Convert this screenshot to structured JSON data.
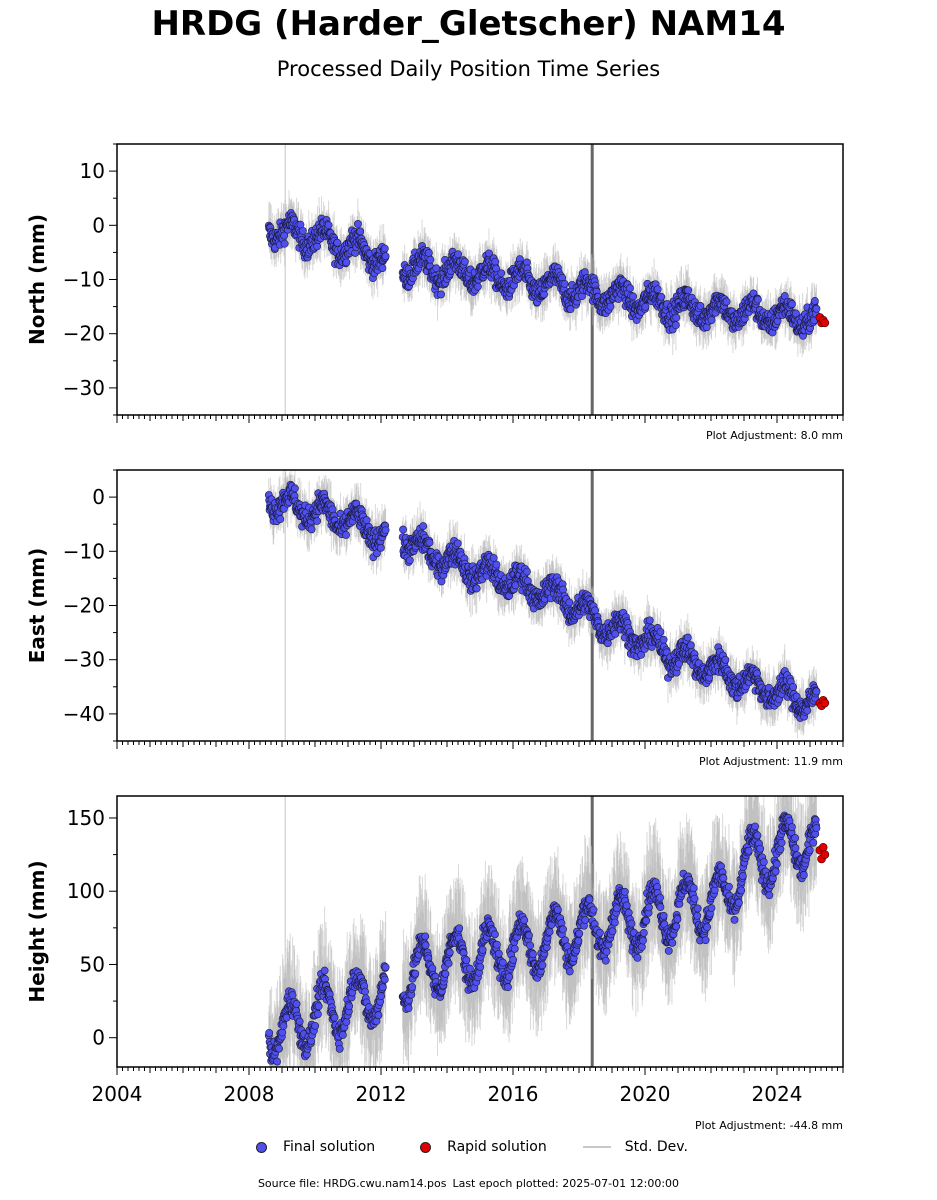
{
  "page": {
    "title": "HRDG (Harder_Gletscher) NAM14",
    "subtitle": "Processed Daily Position Time Series"
  },
  "legend": {
    "final_label": "Final solution",
    "rapid_label": "Rapid solution",
    "stddev_label": "Std. Dev."
  },
  "footer": {
    "source": "Source file: HRDG.cwu.nam14.pos",
    "last_epoch": "Last epoch plotted: 2025-07-01 12:00:00"
  },
  "colors": {
    "final": "#5050f0",
    "rapid": "#e00000",
    "stddev": "#b4b4b4",
    "event_line": "#666666",
    "antenna_line": "#d8d8d8"
  },
  "chart_data": [
    {
      "type": "scatter",
      "ylabel": "North (mm)",
      "adjustment_label": "Plot Adjustment: 8.0 mm",
      "xlim": [
        2004,
        2026
      ],
      "ylim": [
        -35,
        15
      ],
      "yticks": [
        10,
        0,
        -10,
        -20,
        -30
      ],
      "xticks": [],
      "event_lines": [
        2009.1,
        2018.4
      ],
      "final_series": {
        "name": "Final solution",
        "x": [
          2008.6,
          2009.0,
          2009.5,
          2010.0,
          2010.5,
          2011.0,
          2011.5,
          2012.0,
          2012.7,
          2013.0,
          2013.5,
          2014.0,
          2014.5,
          2015.0,
          2015.5,
          2016.0,
          2016.5,
          2017.0,
          2017.5,
          2018.0,
          2018.5,
          2019.0,
          2019.5,
          2020.0,
          2020.5,
          2021.0,
          2021.5,
          2022.0,
          2022.5,
          2023.0,
          2023.5,
          2024.0,
          2024.5,
          2025.0,
          2025.2
        ],
        "y": [
          0,
          -1.5,
          -1.5,
          -2.5,
          -3,
          -4,
          -4.5,
          -6,
          -7.5,
          -8,
          -8,
          -8.5,
          -8.5,
          -9,
          -9.5,
          -10,
          -10.5,
          -11,
          -11.5,
          -12,
          -12.5,
          -13,
          -13.5,
          -14,
          -14.5,
          -15,
          -15.5,
          -15.5,
          -16,
          -16,
          -16.5,
          -16.5,
          -17,
          -17,
          -17.5
        ]
      },
      "rapid_series": {
        "name": "Rapid solution",
        "x": [
          2025.3,
          2025.35,
          2025.4,
          2025.45
        ],
        "y": [
          -17,
          -18,
          -17.5,
          -18
        ]
      }
    },
    {
      "type": "scatter",
      "ylabel": "East (mm)",
      "adjustment_label": "Plot Adjustment: 11.9 mm",
      "xlim": [
        2004,
        2026
      ],
      "ylim": [
        -45,
        5
      ],
      "yticks": [
        0,
        -10,
        -20,
        -30,
        -40
      ],
      "xticks": [],
      "event_lines": [
        2009.1,
        2018.4
      ],
      "final_series": {
        "name": "Final solution",
        "x": [
          2008.6,
          2009.0,
          2009.5,
          2010.0,
          2010.5,
          2011.0,
          2011.5,
          2012.0,
          2012.7,
          2013.0,
          2013.5,
          2014.0,
          2014.5,
          2015.0,
          2015.5,
          2016.0,
          2016.5,
          2017.0,
          2017.5,
          2018.0,
          2018.5,
          2019.0,
          2019.5,
          2020.0,
          2020.5,
          2021.0,
          2021.5,
          2022.0,
          2022.5,
          2023.0,
          2023.5,
          2024.0,
          2024.5,
          2025.0,
          2025.2
        ],
        "y": [
          0,
          -1,
          -2,
          -2.5,
          -3.5,
          -4.5,
          -5.5,
          -7,
          -7,
          -9,
          -10.5,
          -11.5,
          -12.5,
          -14,
          -14.5,
          -15.5,
          -17,
          -17.5,
          -18.5,
          -20.5,
          -22.5,
          -24,
          -25,
          -26.5,
          -28,
          -29.5,
          -30.5,
          -31.5,
          -32.5,
          -34,
          -35,
          -36,
          -37,
          -37.5,
          -38
        ]
      },
      "rapid_series": {
        "name": "Rapid solution",
        "x": [
          2025.3,
          2025.35,
          2025.4,
          2025.45
        ],
        "y": [
          -38,
          -38.5,
          -37.5,
          -38
        ]
      }
    },
    {
      "type": "scatter",
      "ylabel": "Height (mm)",
      "adjustment_label": "Plot Adjustment: -44.8 mm",
      "xlim": [
        2004,
        2026
      ],
      "ylim": [
        -20,
        165
      ],
      "yticks": [
        150,
        100,
        50,
        0
      ],
      "xticks": [
        "2004",
        "2008",
        "2012",
        "2016",
        "2020",
        "2024"
      ],
      "event_lines": [
        2009.1,
        2018.4
      ],
      "final_series": {
        "name": "Final solution",
        "x": [
          2008.6,
          2009.0,
          2009.5,
          2010.0,
          2010.5,
          2011.0,
          2011.5,
          2012.0,
          2012.7,
          2013.0,
          2013.5,
          2014.0,
          2014.5,
          2015.0,
          2015.5,
          2016.0,
          2016.5,
          2017.0,
          2017.5,
          2018.0,
          2018.5,
          2019.0,
          2019.5,
          2020.0,
          2020.5,
          2021.0,
          2021.5,
          2022.0,
          2022.5,
          2023.0,
          2023.5,
          2024.0,
          2024.5,
          2025.0,
          2025.2
        ],
        "y": [
          8,
          5,
          10,
          15,
          20,
          22,
          28,
          32,
          42,
          45,
          48,
          52,
          55,
          55,
          58,
          60,
          62,
          66,
          70,
          72,
          75,
          78,
          80,
          82,
          85,
          88,
          90,
          92,
          95,
          118,
          122,
          125,
          132,
          135,
          130
        ]
      },
      "rapid_series": {
        "name": "Rapid solution",
        "x": [
          2025.3,
          2025.35,
          2025.4,
          2025.45
        ],
        "y": [
          128,
          122,
          130,
          125
        ]
      }
    }
  ]
}
